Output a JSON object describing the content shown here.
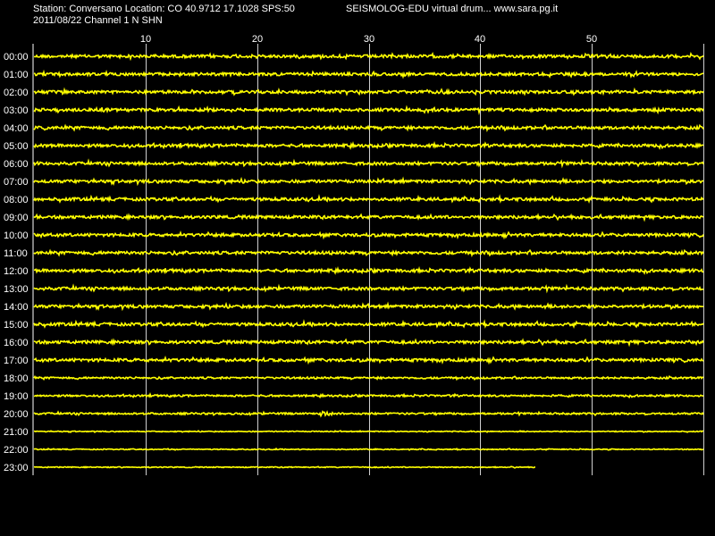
{
  "header": {
    "station_line": "Station: Conversano Location: CO 40.9712 17.1028 SPS:50",
    "credit": "SEISMOLOG-EDU virtual drum... www.sara.pg.it",
    "date_channel": "2011/08/22  Channel 1 N SHN"
  },
  "colors": {
    "background": "#000000",
    "trace": "#ffff00",
    "grid": "#ffffff",
    "text": "#ffffff"
  },
  "drum": {
    "minute_ticks": [
      "10",
      "20",
      "30",
      "40",
      "50"
    ],
    "minute_tick_values": [
      10,
      20,
      30,
      40,
      50
    ],
    "minute_range": [
      0,
      60
    ],
    "hour_labels": [
      "00:00",
      "01:00",
      "02:00",
      "03:00",
      "04:00",
      "05:00",
      "06:00",
      "07:00",
      "08:00",
      "09:00",
      "10:00",
      "11:00",
      "12:00",
      "13:00",
      "14:00",
      "15:00",
      "16:00",
      "17:00",
      "18:00",
      "19:00",
      "20:00",
      "21:00",
      "22:00",
      "23:00"
    ],
    "last_row_end_minute": 45,
    "event": {
      "hour": 20,
      "minute": 26
    }
  }
}
